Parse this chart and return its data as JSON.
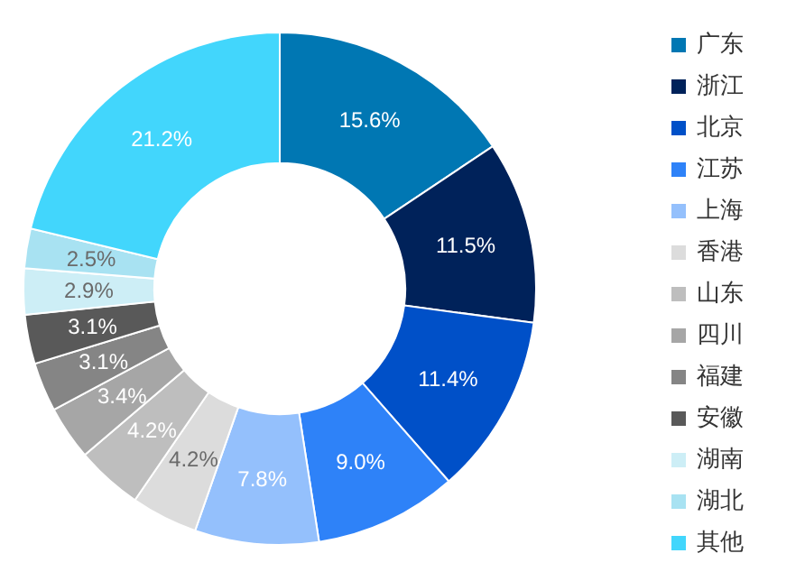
{
  "chart_data": {
    "type": "donut",
    "categories": [
      "广东",
      "浙江",
      "北京",
      "江苏",
      "上海",
      "香港",
      "山东",
      "四川",
      "福建",
      "安徽",
      "湖南",
      "湖北",
      "其他"
    ],
    "values": [
      15.6,
      11.5,
      11.4,
      9.0,
      7.8,
      4.2,
      4.2,
      3.4,
      3.1,
      3.1,
      2.9,
      2.5,
      21.2
    ],
    "value_labels": [
      "15.6%",
      "11.5%",
      "11.4%",
      "9.0%",
      "7.8%",
      "4.2%",
      "4.2%",
      "3.4%",
      "3.1%",
      "3.1%",
      "2.9%",
      "2.5%",
      "21.2%"
    ],
    "colors": [
      "#0077b3",
      "#00225a",
      "#0050c8",
      "#2e82f8",
      "#94c0fc",
      "#dcdcdc",
      "#bebebe",
      "#a6a6a6",
      "#858585",
      "#595959",
      "#cdeef6",
      "#a8e2f2",
      "#42d6fc"
    ],
    "legend": "right"
  }
}
